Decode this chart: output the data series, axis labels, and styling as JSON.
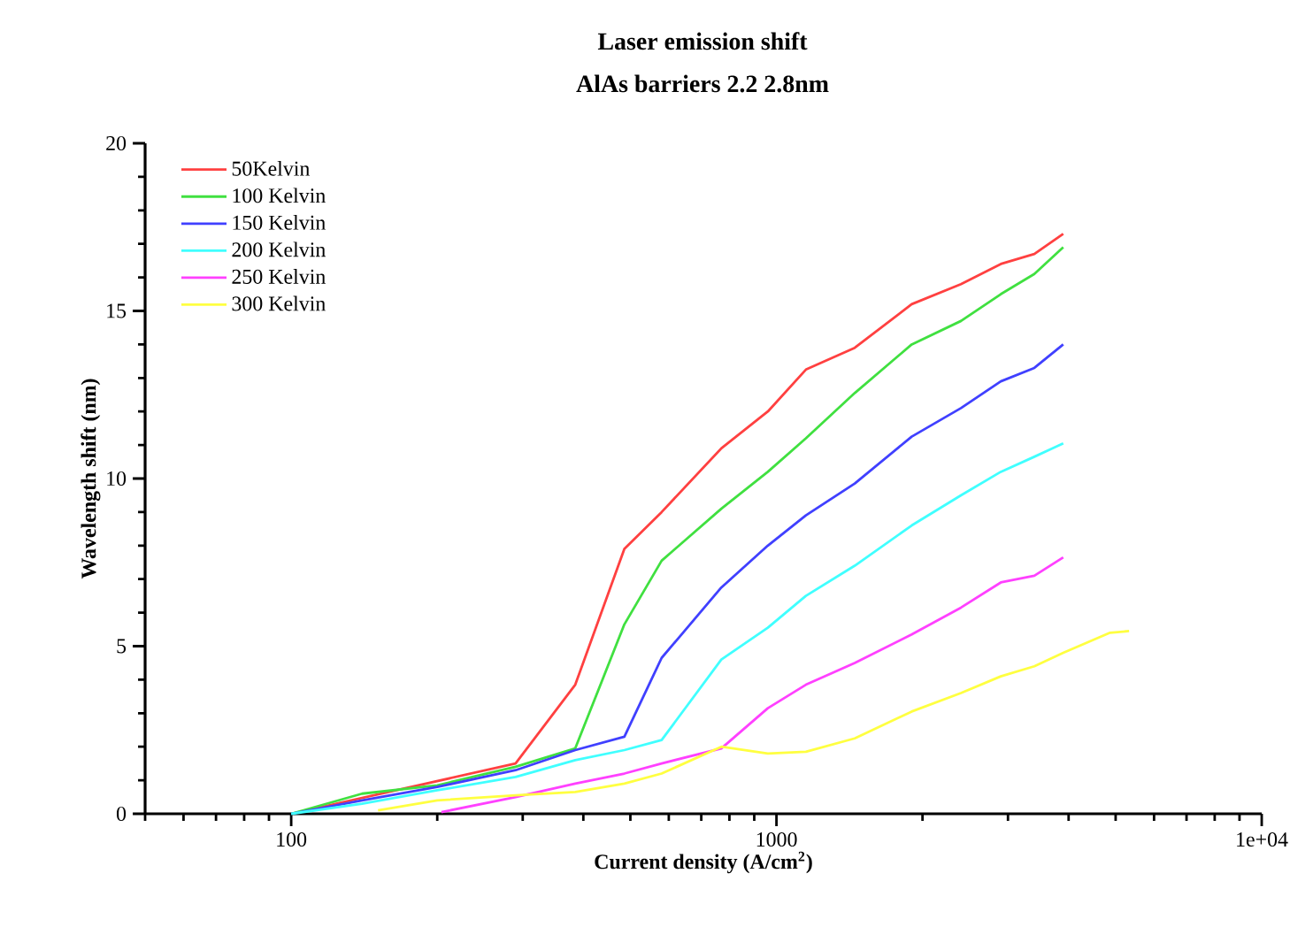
{
  "chart_data": {
    "type": "line",
    "title": "Laser emission shift",
    "subtitle": "AlAs barriers 2.2 2.8nm",
    "xlabel": "Current density (A/cm$^{2}$)",
    "ylabel": "Wavelength shift (nm)",
    "log": "x",
    "xlim": [
      50,
      10000
    ],
    "xticks": [
      100,
      1000,
      {
        "value": 10000,
        "label": "1e+04"
      }
    ],
    "ylim": [
      0,
      20
    ],
    "yticks": [
      0,
      5,
      10,
      15,
      20
    ],
    "legend": "top left",
    "series": [
      {
        "name": "50Kelvin",
        "color": "#ff4040",
        "x": [
          100,
          140,
          200,
          290,
          385,
          486,
          580,
          770,
          960,
          1150,
          1450,
          1900,
          2400,
          2900,
          3400,
          3900
        ],
        "values": [
          0,
          null,
          null,
          1.5,
          3.85,
          7.9,
          9.0,
          10.9,
          12.0,
          13.25,
          13.9,
          15.2,
          15.8,
          16.4,
          16.7,
          17.3
        ]
      },
      {
        "name": "100 Kelvin",
        "color": "#40e040",
        "x": [
          100,
          140,
          200,
          290,
          385,
          486,
          580,
          770,
          960,
          1150,
          1450,
          1900,
          2400,
          2900,
          3400,
          3900
        ],
        "values": [
          0,
          0.6,
          0.85,
          1.4,
          1.95,
          5.65,
          7.55,
          9.1,
          10.2,
          11.2,
          12.55,
          14.0,
          14.7,
          15.5,
          16.1,
          16.9
        ]
      },
      {
        "name": "150 Kelvin",
        "color": "#4040ff",
        "x": [
          100,
          140,
          200,
          290,
          385,
          486,
          580,
          770,
          960,
          1150,
          1450,
          1900,
          2400,
          2900,
          3400,
          3900
        ],
        "values": [
          0,
          0.4,
          0.8,
          1.3,
          1.9,
          2.3,
          4.65,
          6.75,
          8.0,
          8.9,
          9.85,
          11.25,
          12.1,
          12.9,
          13.3,
          14.0
        ]
      },
      {
        "name": "200 Kelvin",
        "color": "#40ffff",
        "x": [
          100,
          140,
          200,
          290,
          385,
          486,
          580,
          770,
          960,
          1150,
          1450,
          1900,
          2400,
          2900,
          3400,
          3900
        ],
        "values": [
          0,
          0.3,
          0.7,
          1.1,
          1.6,
          1.9,
          2.2,
          4.6,
          5.55,
          6.5,
          7.4,
          8.6,
          9.5,
          10.2,
          10.65,
          11.05
        ]
      },
      {
        "name": "250 Kelvin",
        "color": "#ff40ff",
        "x": [
          204,
          290,
          385,
          486,
          580,
          770,
          960,
          1150,
          1450,
          1900,
          2400,
          2900,
          3400,
          3900
        ],
        "values": [
          0.05,
          0.5,
          0.9,
          1.2,
          1.5,
          1.95,
          3.15,
          3.85,
          4.5,
          5.35,
          6.15,
          6.9,
          7.1,
          7.65
        ]
      },
      {
        "name": "300 Kelvin",
        "color": "#ffff40",
        "x": [
          151,
          200,
          290,
          385,
          486,
          580,
          770,
          960,
          1150,
          1450,
          1900,
          2400,
          2900,
          3400,
          3900,
          4870,
          5330
        ],
        "values": [
          0.1,
          0.4,
          0.55,
          0.65,
          0.9,
          1.2,
          2.0,
          1.8,
          1.85,
          2.25,
          3.05,
          3.6,
          4.1,
          4.4,
          4.8,
          5.4,
          5.45
        ]
      }
    ]
  }
}
